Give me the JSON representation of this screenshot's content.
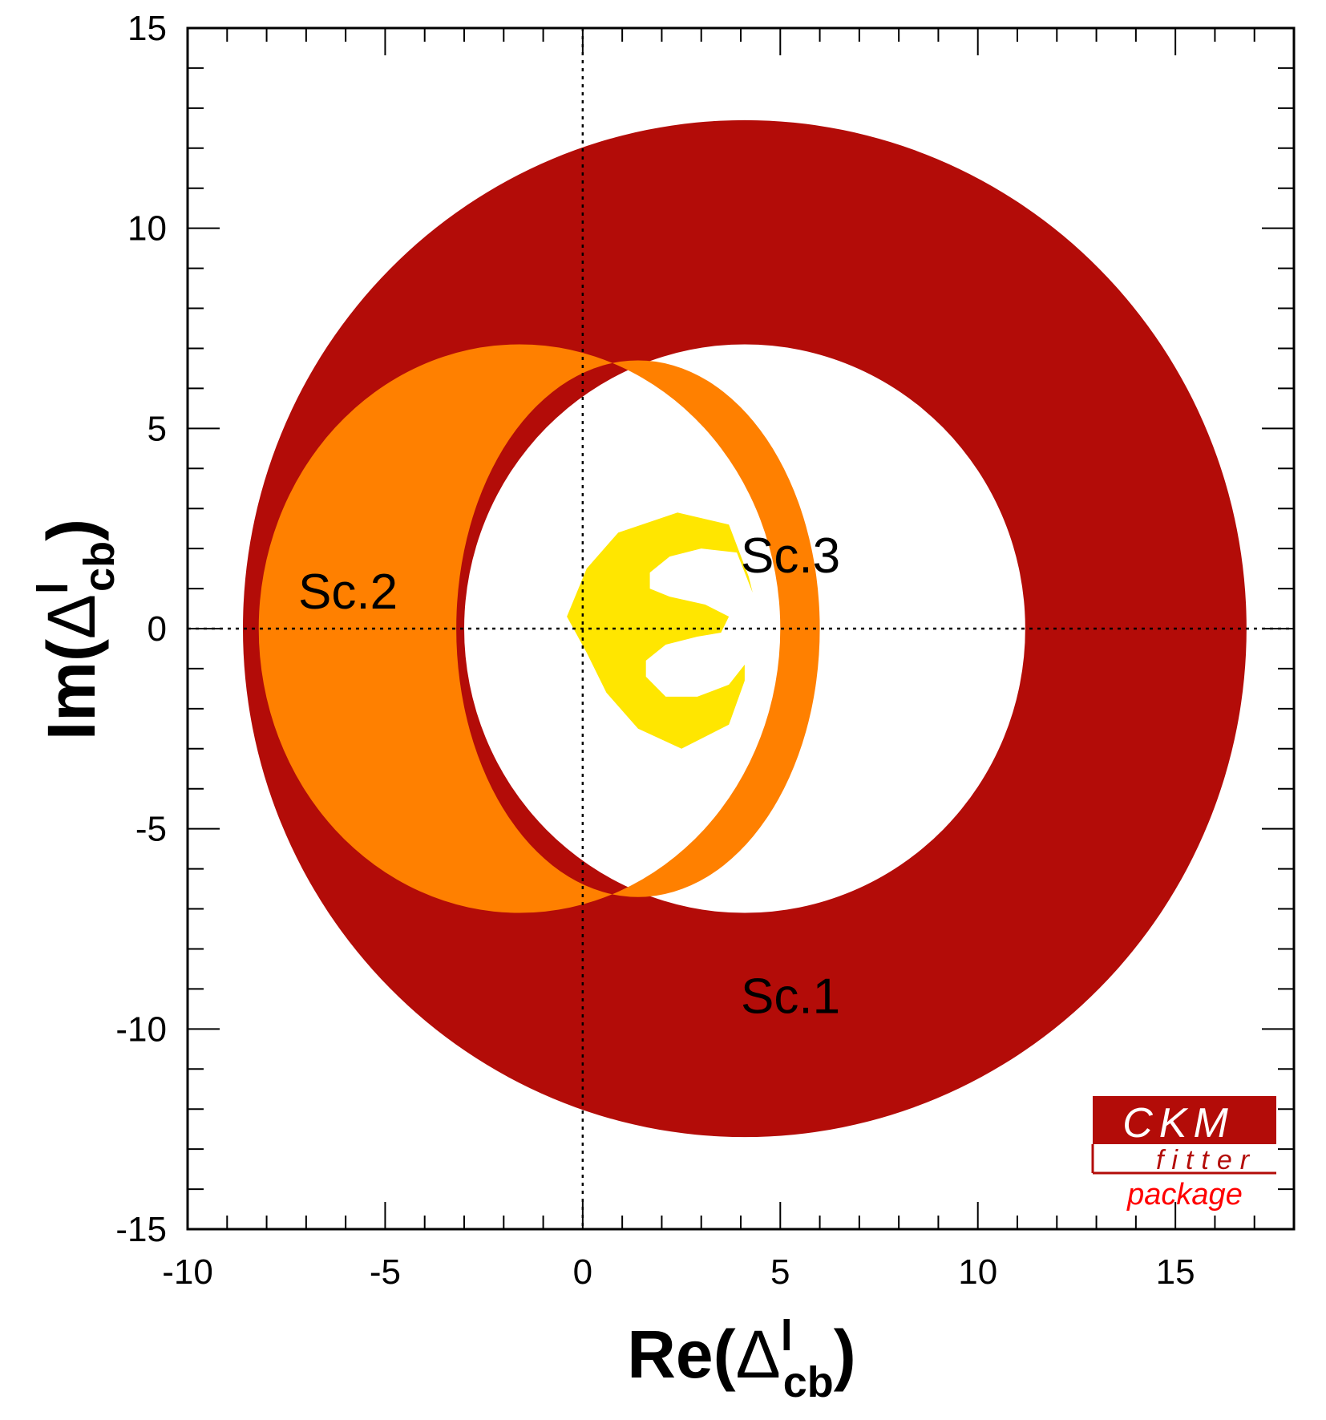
{
  "chart_data": {
    "type": "contour",
    "xlim": [
      -10,
      18
    ],
    "ylim": [
      -15,
      15
    ],
    "x_ticks": [
      -10,
      -5,
      0,
      5,
      10,
      15
    ],
    "y_ticks": [
      -15,
      -10,
      -5,
      0,
      5,
      10,
      15
    ],
    "x_tick_labels": [
      "-10",
      "-5",
      "0",
      "5",
      "10",
      "15"
    ],
    "y_tick_labels": [
      "-15",
      "-10",
      "-5",
      "0",
      "5",
      "10",
      "15"
    ],
    "xlabel": {
      "prefix": "Re(",
      "symbol": "Δ",
      "sup": "l",
      "sub": "cb",
      "suffix": ")"
    },
    "ylabel": {
      "prefix": "Im(",
      "symbol": "Δ",
      "sup": "l",
      "sub": "cb",
      "suffix": ")"
    },
    "reference_lines": {
      "x": 0,
      "y": 0
    },
    "regions": [
      {
        "name": "Sc.1",
        "shape": "annulus",
        "color": "#b30c08",
        "outer_center": [
          4.1,
          0
        ],
        "outer_radii": [
          12.7,
          12.7
        ],
        "inner_center": [
          4.1,
          0
        ],
        "inner_radii": [
          7.1,
          7.1
        ],
        "label_at": [
          4.0,
          -9.6
        ]
      },
      {
        "name": "Sc.2",
        "shape": "crescent",
        "color": "#ff8000",
        "outer_center": [
          -1.6,
          0
        ],
        "outer_radii": [
          6.6,
          7.1
        ],
        "inner_center": [
          1.4,
          0
        ],
        "inner_radii": [
          4.6,
          6.7
        ],
        "label_at": [
          -7.2,
          0.5
        ]
      },
      {
        "name": "Sc.3",
        "shape": "blob",
        "color": "#ffe600",
        "outline": [
          [
            1.4,
            -2.5
          ],
          [
            0.6,
            -1.6
          ],
          [
            0.1,
            -0.6
          ],
          [
            -0.4,
            0.3
          ],
          [
            0.1,
            1.5
          ],
          [
            0.9,
            2.4
          ],
          [
            2.4,
            2.9
          ],
          [
            3.7,
            2.6
          ],
          [
            4.2,
            1.3
          ],
          [
            4.3,
            0.9
          ],
          [
            3.9,
            1.9
          ],
          [
            3.0,
            2.0
          ],
          [
            2.2,
            1.8
          ],
          [
            1.7,
            1.4
          ],
          [
            1.7,
            1.0
          ],
          [
            2.2,
            0.8
          ],
          [
            3.1,
            0.6
          ],
          [
            3.7,
            0.3
          ],
          [
            3.5,
            -0.1
          ],
          [
            2.9,
            -0.2
          ],
          [
            2.1,
            -0.4
          ],
          [
            1.6,
            -0.8
          ],
          [
            1.6,
            -1.2
          ],
          [
            2.1,
            -1.7
          ],
          [
            2.9,
            -1.7
          ],
          [
            3.7,
            -1.4
          ],
          [
            4.1,
            -0.9
          ],
          [
            4.1,
            -1.3
          ],
          [
            3.7,
            -2.4
          ],
          [
            2.5,
            -3.0
          ]
        ],
        "label_at": [
          4.0,
          1.4
        ]
      }
    ],
    "logo": {
      "line1": "CKM",
      "line2": "fitter",
      "line3": "package"
    }
  }
}
